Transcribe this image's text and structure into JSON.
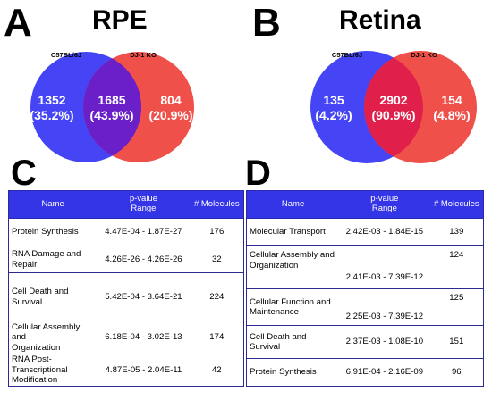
{
  "panels": {
    "a": {
      "letter": "A",
      "title": "RPE",
      "left_label": "C57BL/6J",
      "right_label": "DJ-1 KO",
      "left": {
        "count": "1352",
        "pct": "(35.2%)"
      },
      "middle": {
        "count": "1685",
        "pct": "(43.9%)"
      },
      "right": {
        "count": "804",
        "pct": "(20.9%)"
      }
    },
    "b": {
      "letter": "B",
      "title": "Retina",
      "left_label": "C57BL/6J",
      "right_label": "DJ-1 KO",
      "left": {
        "count": "135",
        "pct": "(4.2%)"
      },
      "middle": {
        "count": "2902",
        "pct": "(90.9%)"
      },
      "right": {
        "count": "154",
        "pct": "(4.8%)"
      }
    },
    "c": {
      "letter": "C"
    },
    "d": {
      "letter": "D"
    }
  },
  "colors": {
    "blue_circle": "#4545f5",
    "red_circle": "#f0504a",
    "overlap_a": "#6a1fc8",
    "overlap_b": "#e0204a",
    "header_blue": "#3535e8"
  },
  "table_c": {
    "headers": {
      "name": "Name",
      "pvalue_line1": "p-value",
      "pvalue_line2": "Range",
      "molecules": "# Molecules"
    },
    "rows": [
      {
        "name1": "Protein Synthesis",
        "name2": "",
        "range": "4.47E-04 - 1.87E-27",
        "molecules": "176"
      },
      {
        "name1": "RNA Damage and Repair",
        "name2": "",
        "range": "4.26E-26 - 4.26E-26",
        "molecules": "32"
      },
      {
        "name1": "Cell Death and Survival",
        "name2": "",
        "range": "5.42E-04 - 3.64E-21",
        "molecules": "224"
      },
      {
        "name1": "Cellular Assembly and",
        "name2": "Organization",
        "range": "6.18E-04 - 3.02E-13",
        "molecules": "174"
      },
      {
        "name1": "RNA Post-Transcriptional",
        "name2": "Modification",
        "range": "4.87E-05 - 2.04E-11",
        "molecules": "42"
      }
    ]
  },
  "table_d": {
    "headers": {
      "name": "Name",
      "pvalue_line1": "p-value",
      "pvalue_line2": "Range",
      "molecules": "# Molecules"
    },
    "rows": [
      {
        "name1": "Molecular Transport",
        "name2": "",
        "range": "2.42E-03 - 1.84E-15",
        "molecules": "139"
      },
      {
        "name1": "Cellular Assembly and",
        "name2": "Organization",
        "range": "2.41E-03 - 7.39E-12",
        "molecules": "124"
      },
      {
        "name1": "Cellular Function and",
        "name2": "Maintenance",
        "range": "2.25E-03 - 7.39E-12",
        "molecules": "125"
      },
      {
        "name1": "Cell Death and Survival",
        "name2": "",
        "range": "2.37E-03 - 1.08E-10",
        "molecules": "151"
      },
      {
        "name1": "Protein Synthesis",
        "name2": "",
        "range": "6.91E-04 - 2.16E-09",
        "molecules": "96"
      }
    ]
  }
}
